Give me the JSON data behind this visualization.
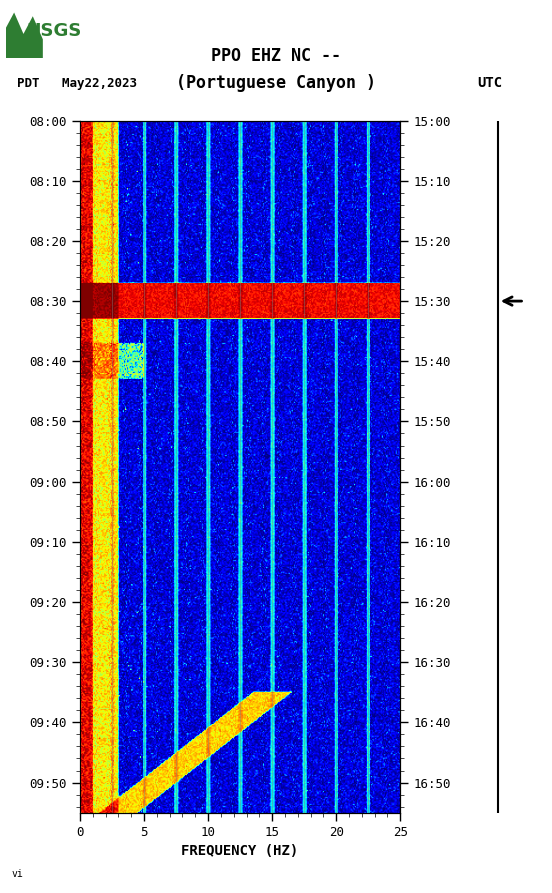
{
  "title_line1": "PPO EHZ NC --",
  "title_line2": "(Portuguese Canyon )",
  "date_label": "PDT   May22,2023",
  "utc_label": "UTC",
  "xlabel": "FREQUENCY (HZ)",
  "freq_min": 0,
  "freq_max": 25,
  "ytick_pdt": [
    "08:00",
    "08:10",
    "08:20",
    "08:30",
    "08:40",
    "08:50",
    "09:00",
    "09:10",
    "09:20",
    "09:30",
    "09:40",
    "09:50"
  ],
  "ytick_utc": [
    "15:00",
    "15:10",
    "15:20",
    "15:30",
    "15:40",
    "15:50",
    "16:00",
    "16:10",
    "16:20",
    "16:30",
    "16:40",
    "16:50"
  ],
  "xticks": [
    0,
    5,
    10,
    15,
    20,
    25
  ],
  "vline_freqs": [
    2.5,
    5,
    7.5,
    10,
    12.5,
    15,
    17.5,
    20,
    22.5
  ],
  "eq_time_min": 30,
  "total_time_min": 115
}
